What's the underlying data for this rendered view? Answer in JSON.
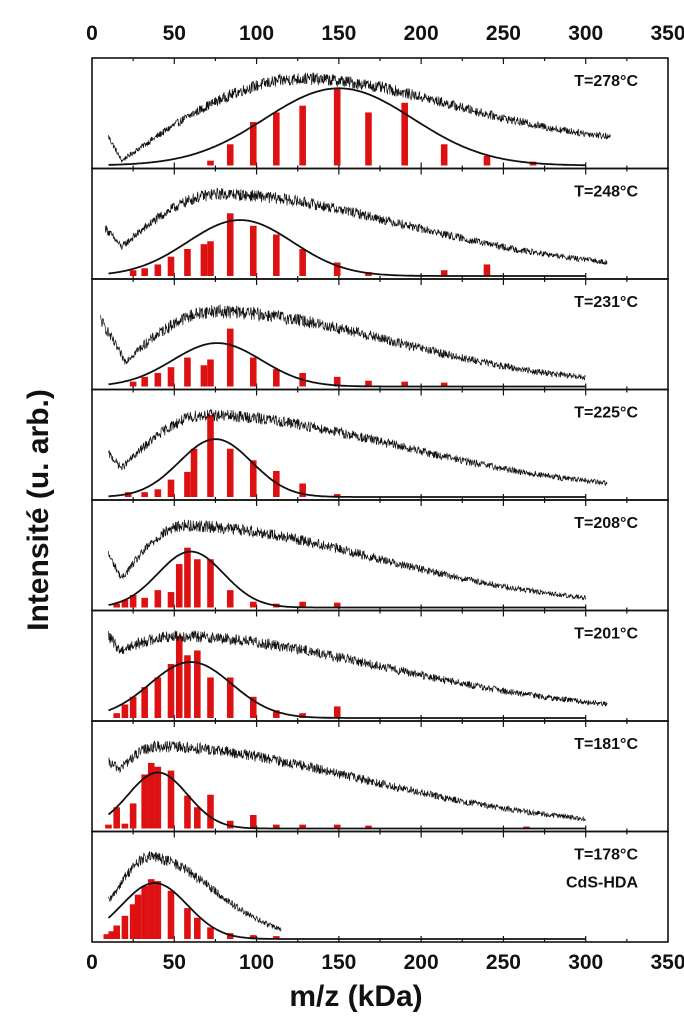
{
  "chart_data": {
    "type": "bar",
    "xlabel": "m/z (kDa)",
    "ylabel": "Intensité (u. arb.)",
    "xlim": [
      0,
      350
    ],
    "xticks": [
      0,
      50,
      100,
      150,
      200,
      250,
      300,
      350
    ],
    "grid": false,
    "legend": "none",
    "colors": {
      "bars": "#dd1111",
      "spectrum": "#111111",
      "fit": "#111111"
    },
    "series_types": [
      "bar",
      "line",
      "line"
    ],
    "panels": [
      {
        "label": "T=278°C",
        "label2": "",
        "spectrum": {
          "x_start": 10,
          "x_end": 315,
          "min_x": 18,
          "min_y": 0.05,
          "start_y": 0.3,
          "peak_x": 130,
          "peak_y": 0.9,
          "width_left": 65,
          "end_y": 0.22,
          "noise": 0.05
        },
        "gaussian": {
          "center": 150,
          "sigma": 45,
          "amplitude": 0.8
        },
        "bars": [
          {
            "x": 72,
            "y": 0.05
          },
          {
            "x": 84,
            "y": 0.22
          },
          {
            "x": 98,
            "y": 0.45
          },
          {
            "x": 112,
            "y": 0.55
          },
          {
            "x": 128,
            "y": 0.62
          },
          {
            "x": 149,
            "y": 0.8
          },
          {
            "x": 168,
            "y": 0.55
          },
          {
            "x": 190,
            "y": 0.65
          },
          {
            "x": 214,
            "y": 0.22
          },
          {
            "x": 240,
            "y": 0.1
          },
          {
            "x": 268,
            "y": 0.04
          }
        ]
      },
      {
        "label": "T=248°C",
        "label2": "",
        "spectrum": {
          "x_start": 8,
          "x_end": 313,
          "min_x": 18,
          "min_y": 0.3,
          "start_y": 0.5,
          "peak_x": 78,
          "peak_y": 0.85,
          "width_left": 38,
          "end_y": 0.05,
          "noise": 0.05
        },
        "gaussian": {
          "center": 90,
          "sigma": 32,
          "amplitude": 0.58
        },
        "bars": [
          {
            "x": 25,
            "y": 0.06
          },
          {
            "x": 32,
            "y": 0.08
          },
          {
            "x": 40,
            "y": 0.12
          },
          {
            "x": 48,
            "y": 0.2
          },
          {
            "x": 58,
            "y": 0.28
          },
          {
            "x": 68,
            "y": 0.33
          },
          {
            "x": 72,
            "y": 0.36
          },
          {
            "x": 84,
            "y": 0.65
          },
          {
            "x": 98,
            "y": 0.52
          },
          {
            "x": 112,
            "y": 0.43
          },
          {
            "x": 128,
            "y": 0.28
          },
          {
            "x": 149,
            "y": 0.14
          },
          {
            "x": 168,
            "y": 0.04
          },
          {
            "x": 214,
            "y": 0.06
          },
          {
            "x": 240,
            "y": 0.12
          }
        ]
      },
      {
        "label": "T=231°C",
        "label2": "",
        "spectrum": {
          "x_start": 5,
          "x_end": 300,
          "min_x": 20,
          "min_y": 0.26,
          "start_y": 0.7,
          "peak_x": 75,
          "peak_y": 0.78,
          "width_left": 35,
          "end_y": 0.0,
          "noise": 0.06
        },
        "gaussian": {
          "center": 76,
          "sigma": 27,
          "amplitude": 0.45
        },
        "bars": [
          {
            "x": 25,
            "y": 0.05
          },
          {
            "x": 32,
            "y": 0.1
          },
          {
            "x": 40,
            "y": 0.14
          },
          {
            "x": 48,
            "y": 0.2
          },
          {
            "x": 58,
            "y": 0.3
          },
          {
            "x": 68,
            "y": 0.22
          },
          {
            "x": 72,
            "y": 0.28
          },
          {
            "x": 84,
            "y": 0.6
          },
          {
            "x": 98,
            "y": 0.3
          },
          {
            "x": 112,
            "y": 0.18
          },
          {
            "x": 128,
            "y": 0.14
          },
          {
            "x": 149,
            "y": 0.1
          },
          {
            "x": 168,
            "y": 0.06
          },
          {
            "x": 190,
            "y": 0.05
          },
          {
            "x": 214,
            "y": 0.04
          }
        ]
      },
      {
        "label": "T=225°C",
        "label2": "",
        "spectrum": {
          "x_start": 10,
          "x_end": 313,
          "min_x": 18,
          "min_y": 0.3,
          "start_y": 0.45,
          "peak_x": 70,
          "peak_y": 0.85,
          "width_left": 30,
          "end_y": 0.05,
          "noise": 0.05
        },
        "gaussian": {
          "center": 75,
          "sigma": 22,
          "amplitude": 0.6
        },
        "bars": [
          {
            "x": 22,
            "y": 0.05
          },
          {
            "x": 32,
            "y": 0.05
          },
          {
            "x": 40,
            "y": 0.08
          },
          {
            "x": 48,
            "y": 0.18
          },
          {
            "x": 58,
            "y": 0.26
          },
          {
            "x": 62,
            "y": 0.5
          },
          {
            "x": 72,
            "y": 0.85
          },
          {
            "x": 84,
            "y": 0.5
          },
          {
            "x": 98,
            "y": 0.38
          },
          {
            "x": 112,
            "y": 0.27
          },
          {
            "x": 128,
            "y": 0.14
          },
          {
            "x": 149,
            "y": 0.03
          }
        ]
      },
      {
        "label": "T=208°C",
        "label2": "",
        "spectrum": {
          "x_start": 10,
          "x_end": 300,
          "min_x": 18,
          "min_y": 0.3,
          "start_y": 0.55,
          "peak_x": 57,
          "peak_y": 0.85,
          "width_left": 25,
          "end_y": 0.0,
          "noise": 0.05
        },
        "gaussian": {
          "center": 60,
          "sigma": 20,
          "amplitude": 0.58
        },
        "bars": [
          {
            "x": 15,
            "y": 0.04
          },
          {
            "x": 20,
            "y": 0.08
          },
          {
            "x": 25,
            "y": 0.13
          },
          {
            "x": 32,
            "y": 0.1
          },
          {
            "x": 40,
            "y": 0.18
          },
          {
            "x": 48,
            "y": 0.16
          },
          {
            "x": 53,
            "y": 0.45
          },
          {
            "x": 58,
            "y": 0.62
          },
          {
            "x": 64,
            "y": 0.5
          },
          {
            "x": 72,
            "y": 0.5
          },
          {
            "x": 84,
            "y": 0.18
          },
          {
            "x": 98,
            "y": 0.06
          },
          {
            "x": 112,
            "y": 0.04
          },
          {
            "x": 128,
            "y": 0.06
          },
          {
            "x": 149,
            "y": 0.05
          }
        ]
      },
      {
        "label": "T=201°C",
        "label2": "",
        "spectrum": {
          "x_start": 10,
          "x_end": 313,
          "min_x": 17,
          "min_y": 0.7,
          "start_y": 0.85,
          "peak_x": 52,
          "peak_y": 0.85,
          "width_left": 22,
          "end_y": 0.05,
          "noise": 0.05
        },
        "gaussian": {
          "center": 60,
          "sigma": 25,
          "amplitude": 0.58
        },
        "bars": [
          {
            "x": 15,
            "y": 0.05
          },
          {
            "x": 20,
            "y": 0.14
          },
          {
            "x": 25,
            "y": 0.22
          },
          {
            "x": 32,
            "y": 0.32
          },
          {
            "x": 40,
            "y": 0.42
          },
          {
            "x": 48,
            "y": 0.56
          },
          {
            "x": 53,
            "y": 0.85
          },
          {
            "x": 58,
            "y": 0.65
          },
          {
            "x": 64,
            "y": 0.7
          },
          {
            "x": 72,
            "y": 0.42
          },
          {
            "x": 84,
            "y": 0.42
          },
          {
            "x": 98,
            "y": 0.22
          },
          {
            "x": 112,
            "y": 0.08
          },
          {
            "x": 128,
            "y": 0.05
          },
          {
            "x": 149,
            "y": 0.12
          }
        ]
      },
      {
        "label": "T=181°C",
        "label2": "",
        "spectrum": {
          "x_start": 10,
          "x_end": 300,
          "min_x": 17,
          "min_y": 0.62,
          "start_y": 0.68,
          "peak_x": 40,
          "peak_y": 0.85,
          "width_left": 14,
          "end_y": 0.0,
          "noise": 0.05
        },
        "gaussian": {
          "center": 40,
          "sigma": 18,
          "amplitude": 0.58
        },
        "bars": [
          {
            "x": 10,
            "y": 0.04
          },
          {
            "x": 15,
            "y": 0.22
          },
          {
            "x": 20,
            "y": 0.05
          },
          {
            "x": 25,
            "y": 0.26
          },
          {
            "x": 32,
            "y": 0.56
          },
          {
            "x": 36,
            "y": 0.68
          },
          {
            "x": 40,
            "y": 0.64
          },
          {
            "x": 48,
            "y": 0.6
          },
          {
            "x": 58,
            "y": 0.34
          },
          {
            "x": 64,
            "y": 0.22
          },
          {
            "x": 72,
            "y": 0.35
          },
          {
            "x": 84,
            "y": 0.08
          },
          {
            "x": 98,
            "y": 0.14
          },
          {
            "x": 112,
            "y": 0.04
          },
          {
            "x": 128,
            "y": 0.04
          },
          {
            "x": 149,
            "y": 0.04
          },
          {
            "x": 168,
            "y": 0.03
          },
          {
            "x": 264,
            "y": 0.02
          }
        ]
      },
      {
        "label": "T=178°C",
        "label2": "CdS-HDA",
        "spectrum": {
          "x_start": 10,
          "x_end": 115,
          "min_x": 11,
          "min_y": 0.4,
          "start_y": 0.4,
          "peak_x": 36,
          "peak_y": 0.85,
          "width_left": 14,
          "end_y": 0.0,
          "noise": 0.05
        },
        "gaussian": {
          "center": 38,
          "sigma": 20,
          "amplitude": 0.58
        },
        "bars": [
          {
            "x": 9,
            "y": 0.05
          },
          {
            "x": 12,
            "y": 0.08
          },
          {
            "x": 15,
            "y": 0.14
          },
          {
            "x": 20,
            "y": 0.24
          },
          {
            "x": 25,
            "y": 0.36
          },
          {
            "x": 28,
            "y": 0.46
          },
          {
            "x": 32,
            "y": 0.55
          },
          {
            "x": 36,
            "y": 0.62
          },
          {
            "x": 40,
            "y": 0.6
          },
          {
            "x": 48,
            "y": 0.5
          },
          {
            "x": 58,
            "y": 0.32
          },
          {
            "x": 64,
            "y": 0.22
          },
          {
            "x": 72,
            "y": 0.12
          },
          {
            "x": 84,
            "y": 0.06
          },
          {
            "x": 98,
            "y": 0.04
          },
          {
            "x": 112,
            "y": 0.03
          }
        ]
      }
    ]
  }
}
